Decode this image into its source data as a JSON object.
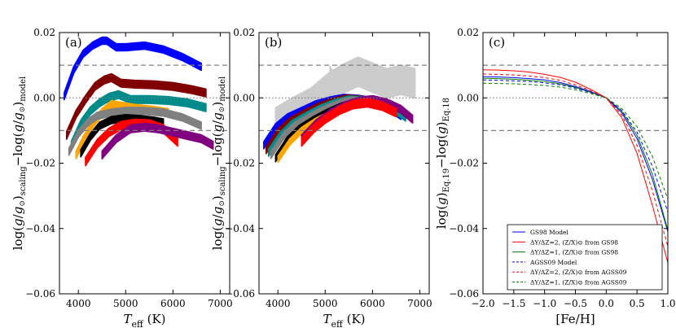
{
  "figure": {
    "panels": [
      "a",
      "b",
      "c"
    ]
  },
  "chart_data": [
    {
      "type": "scatter",
      "panel_label": "(a)",
      "xlabel": "T_eff (K)",
      "ylabel": "log(g/g⊙)_scaling − log(g/g⊙)_model",
      "xlim": [
        3600,
        7200
      ],
      "ylim": [
        -0.06,
        0.02
      ],
      "xticks": [
        4000,
        5000,
        6000,
        7000
      ],
      "xtick_labels": [
        "4000",
        "5000",
        "6000",
        "7000"
      ],
      "yticks": [
        -0.06,
        -0.04,
        -0.02,
        0.0,
        0.02
      ],
      "ytick_labels": [
        "−0.06",
        "−0.04",
        "−0.02",
        "0.00",
        "0.02"
      ],
      "hlines": [
        {
          "y": 0.01,
          "style": "dashed",
          "color": "#808080"
        },
        {
          "y": 0.0,
          "style": "dotted",
          "color": "#808080"
        },
        {
          "y": -0.01,
          "style": "dashed",
          "color": "#808080"
        }
      ],
      "series": [
        {
          "name": "blue",
          "color": "#0000ff",
          "x": [
            3700,
            3900,
            4100,
            4300,
            4500,
            4600,
            4800,
            5000,
            5400,
            5800,
            6200,
            6600
          ],
          "y": [
            0.0005,
            0.0085,
            0.0135,
            0.016,
            0.0175,
            0.0175,
            0.0155,
            0.0155,
            0.016,
            0.0148,
            0.0125,
            0.0095
          ],
          "width": 0.0022
        },
        {
          "name": "dark-red",
          "color": "#800000",
          "x": [
            3750,
            3950,
            4150,
            4350,
            4550,
            4700,
            4900,
            5200,
            5600,
            6000,
            6400,
            6700
          ],
          "y": [
            -0.0115,
            -0.005,
            -0.0005,
            0.0035,
            0.0055,
            0.0062,
            0.0045,
            0.0042,
            0.004,
            0.0035,
            0.0025,
            0.0015
          ],
          "width": 0.0024
        },
        {
          "name": "teal",
          "color": "#008b8b",
          "x": [
            3850,
            4050,
            4250,
            4450,
            4650,
            4850,
            5100,
            5500,
            5900,
            6300,
            6700
          ],
          "y": [
            -0.0145,
            -0.008,
            -0.004,
            -0.0015,
            0.0002,
            0.001,
            -0.0005,
            -0.0005,
            -0.0008,
            -0.0015,
            -0.003
          ],
          "width": 0.0024
        },
        {
          "name": "orange",
          "color": "#ffa500",
          "x": [
            3950,
            4100,
            4300,
            4500,
            4700,
            4900,
            5200,
            5600,
            5900
          ],
          "y": [
            -0.0175,
            -0.013,
            -0.008,
            -0.0045,
            -0.002,
            -0.0025,
            -0.0032,
            -0.0038,
            -0.0045
          ],
          "width": 0.0024
        },
        {
          "name": "gray",
          "color": "#808080",
          "x": [
            3800,
            4000,
            4200,
            4400,
            4700,
            5000,
            5400,
            5800,
            6200,
            6600
          ],
          "y": [
            -0.0165,
            -0.011,
            -0.0075,
            -0.0055,
            -0.0045,
            -0.004,
            -0.004,
            -0.0045,
            -0.006,
            -0.0085
          ],
          "width": 0.0022
        },
        {
          "name": "black",
          "color": "#000000",
          "x": [
            4050,
            4250,
            4450,
            4700,
            5000,
            5300,
            5600,
            5800
          ],
          "y": [
            -0.017,
            -0.012,
            -0.0085,
            -0.0068,
            -0.0062,
            -0.0065,
            -0.007,
            -0.0075
          ],
          "width": 0.0022
        },
        {
          "name": "red",
          "color": "#ff0000",
          "x": [
            4150,
            4400,
            4650,
            4900,
            5200,
            5500,
            5800,
            6100
          ],
          "y": [
            -0.0195,
            -0.014,
            -0.0105,
            -0.0085,
            -0.0078,
            -0.008,
            -0.0095,
            -0.0135
          ],
          "width": 0.0026
        },
        {
          "name": "purple",
          "color": "#800080",
          "x": [
            4500,
            4800,
            5100,
            5400,
            5700,
            6000,
            6300,
            6600,
            6850
          ],
          "y": [
            -0.0175,
            -0.0125,
            -0.0095,
            -0.009,
            -0.0095,
            -0.0105,
            -0.0115,
            -0.0125,
            -0.0145
          ],
          "width": 0.0024
        }
      ]
    },
    {
      "type": "scatter",
      "panel_label": "(b)",
      "xlabel": "T_eff (K)",
      "ylabel": "log(g/g⊙)_scaling − log(g/g⊙)_model",
      "xlim": [
        3600,
        7200
      ],
      "ylim": [
        -0.06,
        0.02
      ],
      "xticks": [
        4000,
        5000,
        6000,
        7000
      ],
      "xtick_labels": [
        "4000",
        "5000",
        "6000",
        "7000"
      ],
      "yticks": [
        -0.06,
        -0.04,
        -0.02,
        0.0,
        0.02
      ],
      "ytick_labels": [
        "−0.06",
        "−0.04",
        "−0.02",
        "0.00",
        "0.02"
      ],
      "hlines": [
        {
          "y": 0.01,
          "style": "dashed",
          "color": "#808080"
        },
        {
          "y": 0.0,
          "style": "dotted",
          "color": "#808080"
        },
        {
          "y": -0.01,
          "style": "dashed",
          "color": "#808080"
        }
      ],
      "series": [
        {
          "name": "light-gray-original",
          "color": "#cccccc",
          "x": [
            3950,
            4300,
            4700,
            5100,
            5400,
            5700,
            6000,
            6300,
            6600,
            6900
          ],
          "y": [
            -0.0075,
            -0.0045,
            -0.0015,
            0.0035,
            0.006,
            0.008,
            0.0062,
            0.0045,
            0.0055,
            0.0045
          ],
          "width": 0.009
        },
        {
          "name": "light-gray-spike",
          "color": "#cccccc",
          "x": [
            5100,
            5150,
            5200
          ],
          "y": [
            0.009,
            0.0075,
            0.004
          ],
          "width": 0.0015
        },
        {
          "name": "blue",
          "color": "#0000ff",
          "x": [
            3700,
            3950,
            4200,
            4500,
            4800,
            5100,
            5400,
            5700,
            6000,
            6300,
            6600
          ],
          "y": [
            -0.0145,
            -0.009,
            -0.006,
            -0.004,
            -0.002,
            -0.0008,
            0.0,
            -0.0003,
            -0.001,
            -0.0025,
            -0.0055
          ],
          "width": 0.0022
        },
        {
          "name": "dark-red",
          "color": "#800000",
          "x": [
            3750,
            4000,
            4250,
            4550,
            4850,
            5150,
            5450,
            5750,
            6050,
            6350,
            6700
          ],
          "y": [
            -0.016,
            -0.0105,
            -0.0072,
            -0.0048,
            -0.0027,
            -0.0012,
            -0.0002,
            -0.0005,
            -0.0013,
            -0.0028,
            -0.0058
          ],
          "width": 0.0022
        },
        {
          "name": "teal",
          "color": "#008b8b",
          "x": [
            3800,
            4050,
            4300,
            4600,
            4900,
            5200,
            5500,
            5800,
            6100,
            6400,
            6700
          ],
          "y": [
            -0.0168,
            -0.0115,
            -0.008,
            -0.0055,
            -0.0033,
            -0.0016,
            -0.0005,
            -0.0007,
            -0.0016,
            -0.003,
            -0.006
          ],
          "width": 0.0022
        },
        {
          "name": "gray",
          "color": "#808080",
          "x": [
            3850,
            4100,
            4350,
            4650,
            4950,
            5250,
            5550,
            5850,
            6150,
            6450
          ],
          "y": [
            -0.0175,
            -0.012,
            -0.0086,
            -0.006,
            -0.0038,
            -0.002,
            -0.0008,
            -0.001,
            -0.002,
            -0.0035
          ],
          "width": 0.0022
        },
        {
          "name": "black",
          "color": "#000000",
          "x": [
            3950,
            4200,
            4450,
            4750,
            5050,
            5350,
            5650,
            5850
          ],
          "y": [
            -0.0185,
            -0.013,
            -0.0095,
            -0.0068,
            -0.0045,
            -0.0026,
            -0.0015,
            -0.0015
          ],
          "width": 0.0022
        },
        {
          "name": "orange",
          "color": "#ffa500",
          "x": [
            4000,
            4250,
            4500,
            4800,
            5100,
            5400,
            5700,
            5900
          ],
          "y": [
            -0.0188,
            -0.0135,
            -0.01,
            -0.0072,
            -0.005,
            -0.003,
            -0.0018,
            -0.0018
          ],
          "width": 0.002
        },
        {
          "name": "purple",
          "color": "#800080",
          "x": [
            4500,
            4800,
            5100,
            5400,
            5700,
            6000,
            6300,
            6600,
            6850
          ],
          "y": [
            -0.0125,
            -0.008,
            -0.0048,
            -0.0025,
            -0.001,
            -0.0005,
            -0.0015,
            -0.0035,
            -0.0065
          ],
          "width": 0.0024
        },
        {
          "name": "red",
          "color": "#ff0000",
          "x": [
            4500,
            4750,
            5000,
            5300,
            5600,
            5900,
            6200,
            6500
          ],
          "y": [
            -0.0135,
            -0.0095,
            -0.0065,
            -0.0038,
            -0.002,
            -0.0015,
            -0.0025,
            -0.0045
          ],
          "width": 0.0026
        }
      ]
    },
    {
      "type": "line",
      "panel_label": "(c)",
      "xlabel": "[Fe/H]",
      "ylabel": "log(g)_Eq.19 − log(g)_Eq.18",
      "xlim": [
        -2.0,
        1.0
      ],
      "ylim": [
        -0.06,
        0.02
      ],
      "xticks": [
        -2.0,
        -1.5,
        -1.0,
        -0.5,
        0.0,
        0.5,
        1.0
      ],
      "xtick_labels": [
        "−2.0",
        "−1.5",
        "−1.0",
        "−0.5",
        "0.0",
        "0.5",
        "1.0"
      ],
      "yticks": [
        -0.06,
        -0.04,
        -0.02,
        0.0,
        0.02
      ],
      "ytick_labels": [
        "−0.06",
        "−0.04",
        "−0.02",
        "0.00",
        "0.02"
      ],
      "hlines": [
        {
          "y": 0.01,
          "style": "dashed",
          "color": "#808080"
        },
        {
          "y": 0.0,
          "style": "dotted",
          "color": "#808080"
        },
        {
          "y": -0.01,
          "style": "dashed",
          "color": "#808080"
        }
      ],
      "x": [
        -2.0,
        -1.75,
        -1.5,
        -1.25,
        -1.0,
        -0.75,
        -0.5,
        -0.25,
        0.0,
        0.25,
        0.5,
        0.75,
        1.0
      ],
      "series": [
        {
          "name": "GS98 Model",
          "color": "#0000ff",
          "dash": "solid",
          "values": [
            0.0065,
            0.0064,
            0.0062,
            0.0059,
            0.0055,
            0.0047,
            0.0035,
            0.0019,
            0.0,
            -0.0045,
            -0.0125,
            -0.025,
            -0.041
          ]
        },
        {
          "name": "ΔY/ΔZ=2, (Z/X)⊙ from GS98",
          "color": "#ff0000",
          "dash": "solid",
          "values": [
            0.0086,
            0.0085,
            0.0083,
            0.0079,
            0.0072,
            0.0063,
            0.0048,
            0.0026,
            0.0,
            -0.006,
            -0.017,
            -0.033,
            -0.0505
          ]
        },
        {
          "name": "ΔY/ΔZ=1, (Z/X)⊙ from GS98",
          "color": "#008000",
          "dash": "solid",
          "values": [
            0.006,
            0.0059,
            0.0057,
            0.0054,
            0.005,
            0.0043,
            0.0032,
            0.0017,
            0.0,
            -0.004,
            -0.0115,
            -0.0235,
            -0.0405
          ]
        },
        {
          "name": "AGSS09 Model",
          "color": "#0000ff",
          "dash": "dashed",
          "values": [
            0.0055,
            0.0054,
            0.0052,
            0.005,
            0.0046,
            0.004,
            0.003,
            0.0016,
            0.0,
            -0.0038,
            -0.0105,
            -0.021,
            -0.035
          ]
        },
        {
          "name": "ΔY/ΔZ=2, (Z/X)⊙ from AGSS09",
          "color": "#ff0000",
          "dash": "dashed",
          "values": [
            0.0073,
            0.0072,
            0.007,
            0.0067,
            0.0062,
            0.0054,
            0.004,
            0.0022,
            0.0,
            -0.0052,
            -0.0145,
            -0.0285,
            -0.0455
          ]
        },
        {
          "name": "ΔY/ΔZ=1, (Z/X)⊙ from AGSS09",
          "color": "#008000",
          "dash": "dashed",
          "values": [
            0.0045,
            0.0044,
            0.0043,
            0.0041,
            0.0038,
            0.0033,
            0.0025,
            0.0013,
            0.0,
            -0.0032,
            -0.0088,
            -0.018,
            -0.031
          ]
        }
      ],
      "legend": {
        "placement": "lower-left",
        "entries": [
          "GS98 Model",
          "ΔY/ΔZ=2, (Z/X)⊙ from GS98",
          "ΔY/ΔZ=1, (Z/X)⊙ from GS98",
          "AGSS09 Model",
          "ΔY/ΔZ=2, (Z/X)⊙ from AGSS09",
          "ΔY/ΔZ=1, (Z/X)⊙ from AGSS09"
        ]
      }
    }
  ]
}
